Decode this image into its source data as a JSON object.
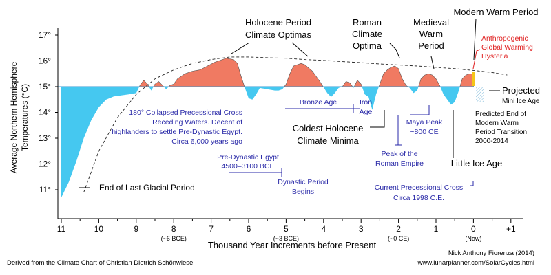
{
  "chart_data": {
    "type": "area",
    "xlabel": "Thousand Year Increments before Present",
    "ylabel_line1": "Average Northern Hemisphere",
    "ylabel_line2": "Temperatures (°C)",
    "xlim": [
      11,
      -1
    ],
    "ylim": [
      10,
      17.4
    ],
    "baseline": 15,
    "x_ticks": [
      "11",
      "10",
      "9",
      "8",
      "7",
      "6",
      "5",
      "4",
      "3",
      "2",
      "1",
      "0",
      "+1"
    ],
    "x_tick_values": [
      11,
      10,
      9,
      8,
      7,
      6,
      5,
      4,
      3,
      2,
      1,
      0,
      -1
    ],
    "era_labels": [
      "(~6 BCE)",
      "(~3 BCE)",
      "(~0 CE)",
      "(Now)"
    ],
    "era_label_values": [
      8,
      5,
      2,
      0
    ],
    "y_ticks": [
      "11°",
      "12°",
      "13°",
      "14°",
      "15°",
      "16°",
      "17°"
    ],
    "y_tick_values": [
      11,
      12,
      13,
      14,
      15,
      16,
      17
    ],
    "colors": {
      "warm": "#f07a62",
      "cold": "#45c8f0",
      "annotation_blue": "#2a2aa8",
      "annotation_red": "#e02020",
      "now_marker": "#f5c518"
    },
    "series": [
      {
        "name": "Temperature",
        "x": [
          11,
          10.8,
          10.6,
          10.4,
          10.2,
          10,
          9.8,
          9.6,
          9.4,
          9.2,
          9,
          8.9,
          8.8,
          8.7,
          8.6,
          8.5,
          8.4,
          8.3,
          8.2,
          8.1,
          8,
          7.9,
          7.7,
          7.5,
          7.3,
          7.1,
          6.9,
          6.7,
          6.6,
          6.4,
          6.3,
          6.2,
          6.1,
          6,
          5.9,
          5.8,
          5.7,
          5.5,
          5.3,
          5.2,
          5.1,
          5,
          4.9,
          4.8,
          4.6,
          4.5,
          4.3,
          4.1,
          3.9,
          3.8,
          3.7,
          3.6,
          3.5,
          3.4,
          3.3,
          3.2,
          3.1,
          3,
          2.9,
          2.8,
          2.7,
          2.6,
          2.5,
          2.4,
          2.3,
          2.2,
          2.1,
          2,
          1.9,
          1.8,
          1.7,
          1.6,
          1.5,
          1.4,
          1.3,
          1.2,
          1.1,
          1,
          0.9,
          0.8,
          0.7,
          0.6,
          0.5,
          0.4,
          0.3,
          0.2,
          0.1,
          0
        ],
        "y": [
          10.7,
          11.3,
          12.1,
          13,
          13.7,
          14.2,
          14.5,
          14.62,
          14.66,
          14.7,
          14.75,
          15.05,
          15.25,
          15.1,
          14.85,
          15.1,
          15.2,
          15.05,
          14.9,
          15.05,
          15.1,
          15.3,
          15.5,
          15.6,
          15.65,
          15.8,
          15.95,
          16.05,
          16.1,
          16.05,
          15.9,
          15.4,
          14.95,
          14.55,
          14.5,
          14.7,
          14.95,
          14.9,
          14.85,
          14.85,
          14.9,
          15.1,
          15.5,
          15.8,
          15.9,
          15.85,
          15.6,
          15.2,
          14.75,
          14.6,
          14.75,
          14.95,
          15,
          15.2,
          15.15,
          14.95,
          15.25,
          15.1,
          14.7,
          14.6,
          14.1,
          14.7,
          15.1,
          15.5,
          15.65,
          15.75,
          15.8,
          15.7,
          15.3,
          15.05,
          14.95,
          14.75,
          14.85,
          15.3,
          15.45,
          15.5,
          15.45,
          15.3,
          15.05,
          14.7,
          14.5,
          14.3,
          14.4,
          14.8,
          15.3,
          15.45,
          15.5,
          15.5
        ]
      }
    ],
    "trend": {
      "x": [
        10.4,
        10,
        9.5,
        9,
        8.5,
        8,
        7.5,
        7,
        6.5,
        6,
        5.5,
        5,
        4.5,
        4,
        3.5,
        3,
        2.5,
        2,
        1.5,
        1,
        0.5,
        0,
        -0.5,
        -0.9
      ],
      "y": [
        10.9,
        12.5,
        13.8,
        14.7,
        15.3,
        15.65,
        15.9,
        16.05,
        16.15,
        16.15,
        16.12,
        16.1,
        16.05,
        16.02,
        15.97,
        15.93,
        15.88,
        15.84,
        15.8,
        15.75,
        15.7,
        15.63,
        15.55,
        15.45
      ]
    },
    "annotations": {
      "holocene": [
        "Holocene Period",
        "Climate Optimas"
      ],
      "roman": [
        "Roman",
        "Climate",
        "Optima"
      ],
      "medieval": [
        "Medieval",
        "Warm",
        "Period"
      ],
      "modern": "Modern Warm Period",
      "anthro": [
        "Anthropogenic",
        "Global Warming",
        "Hysteria"
      ],
      "projected": "Projected",
      "mini_ice": "Mini Ice Age",
      "predicted": [
        "Predicted End of",
        "Modern Warm",
        "Period Transition",
        "2000-2014"
      ],
      "collapsed": [
        "180° Collapsed Precessional Cross",
        "Receding Waters. Decent of",
        "highlanders to settle Pre-Dynastic Egypt.",
        "Circa 6,000 years ago"
      ],
      "bronze": "Bronze Age",
      "iron": [
        "Iron",
        "Age"
      ],
      "coldest": [
        "Coldest Holocene",
        "Climate Minima"
      ],
      "maya": [
        "Maya Peak",
        "~800 CE"
      ],
      "peak_roman": [
        "Peak of the",
        "Roman Empire"
      ],
      "little_ice": "Little Ice Age",
      "predynastic": [
        "Pre-Dynastic Egypt",
        "4500–3100 BCE"
      ],
      "dynastic": [
        "Dynastic Period",
        "Begins"
      ],
      "current_cross": [
        "Current Precessional Cross",
        "Circa 1998 C.E."
      ],
      "end_glacial": "End of Last Glacial Period"
    },
    "credits": {
      "derived": "Derived from the Climate Chart of Christian Dietrich Schönwiese",
      "author": "Nick Anthony Fiorenza (2014)",
      "url": "www.lunarplanner.com/SolarCycles.html"
    }
  }
}
